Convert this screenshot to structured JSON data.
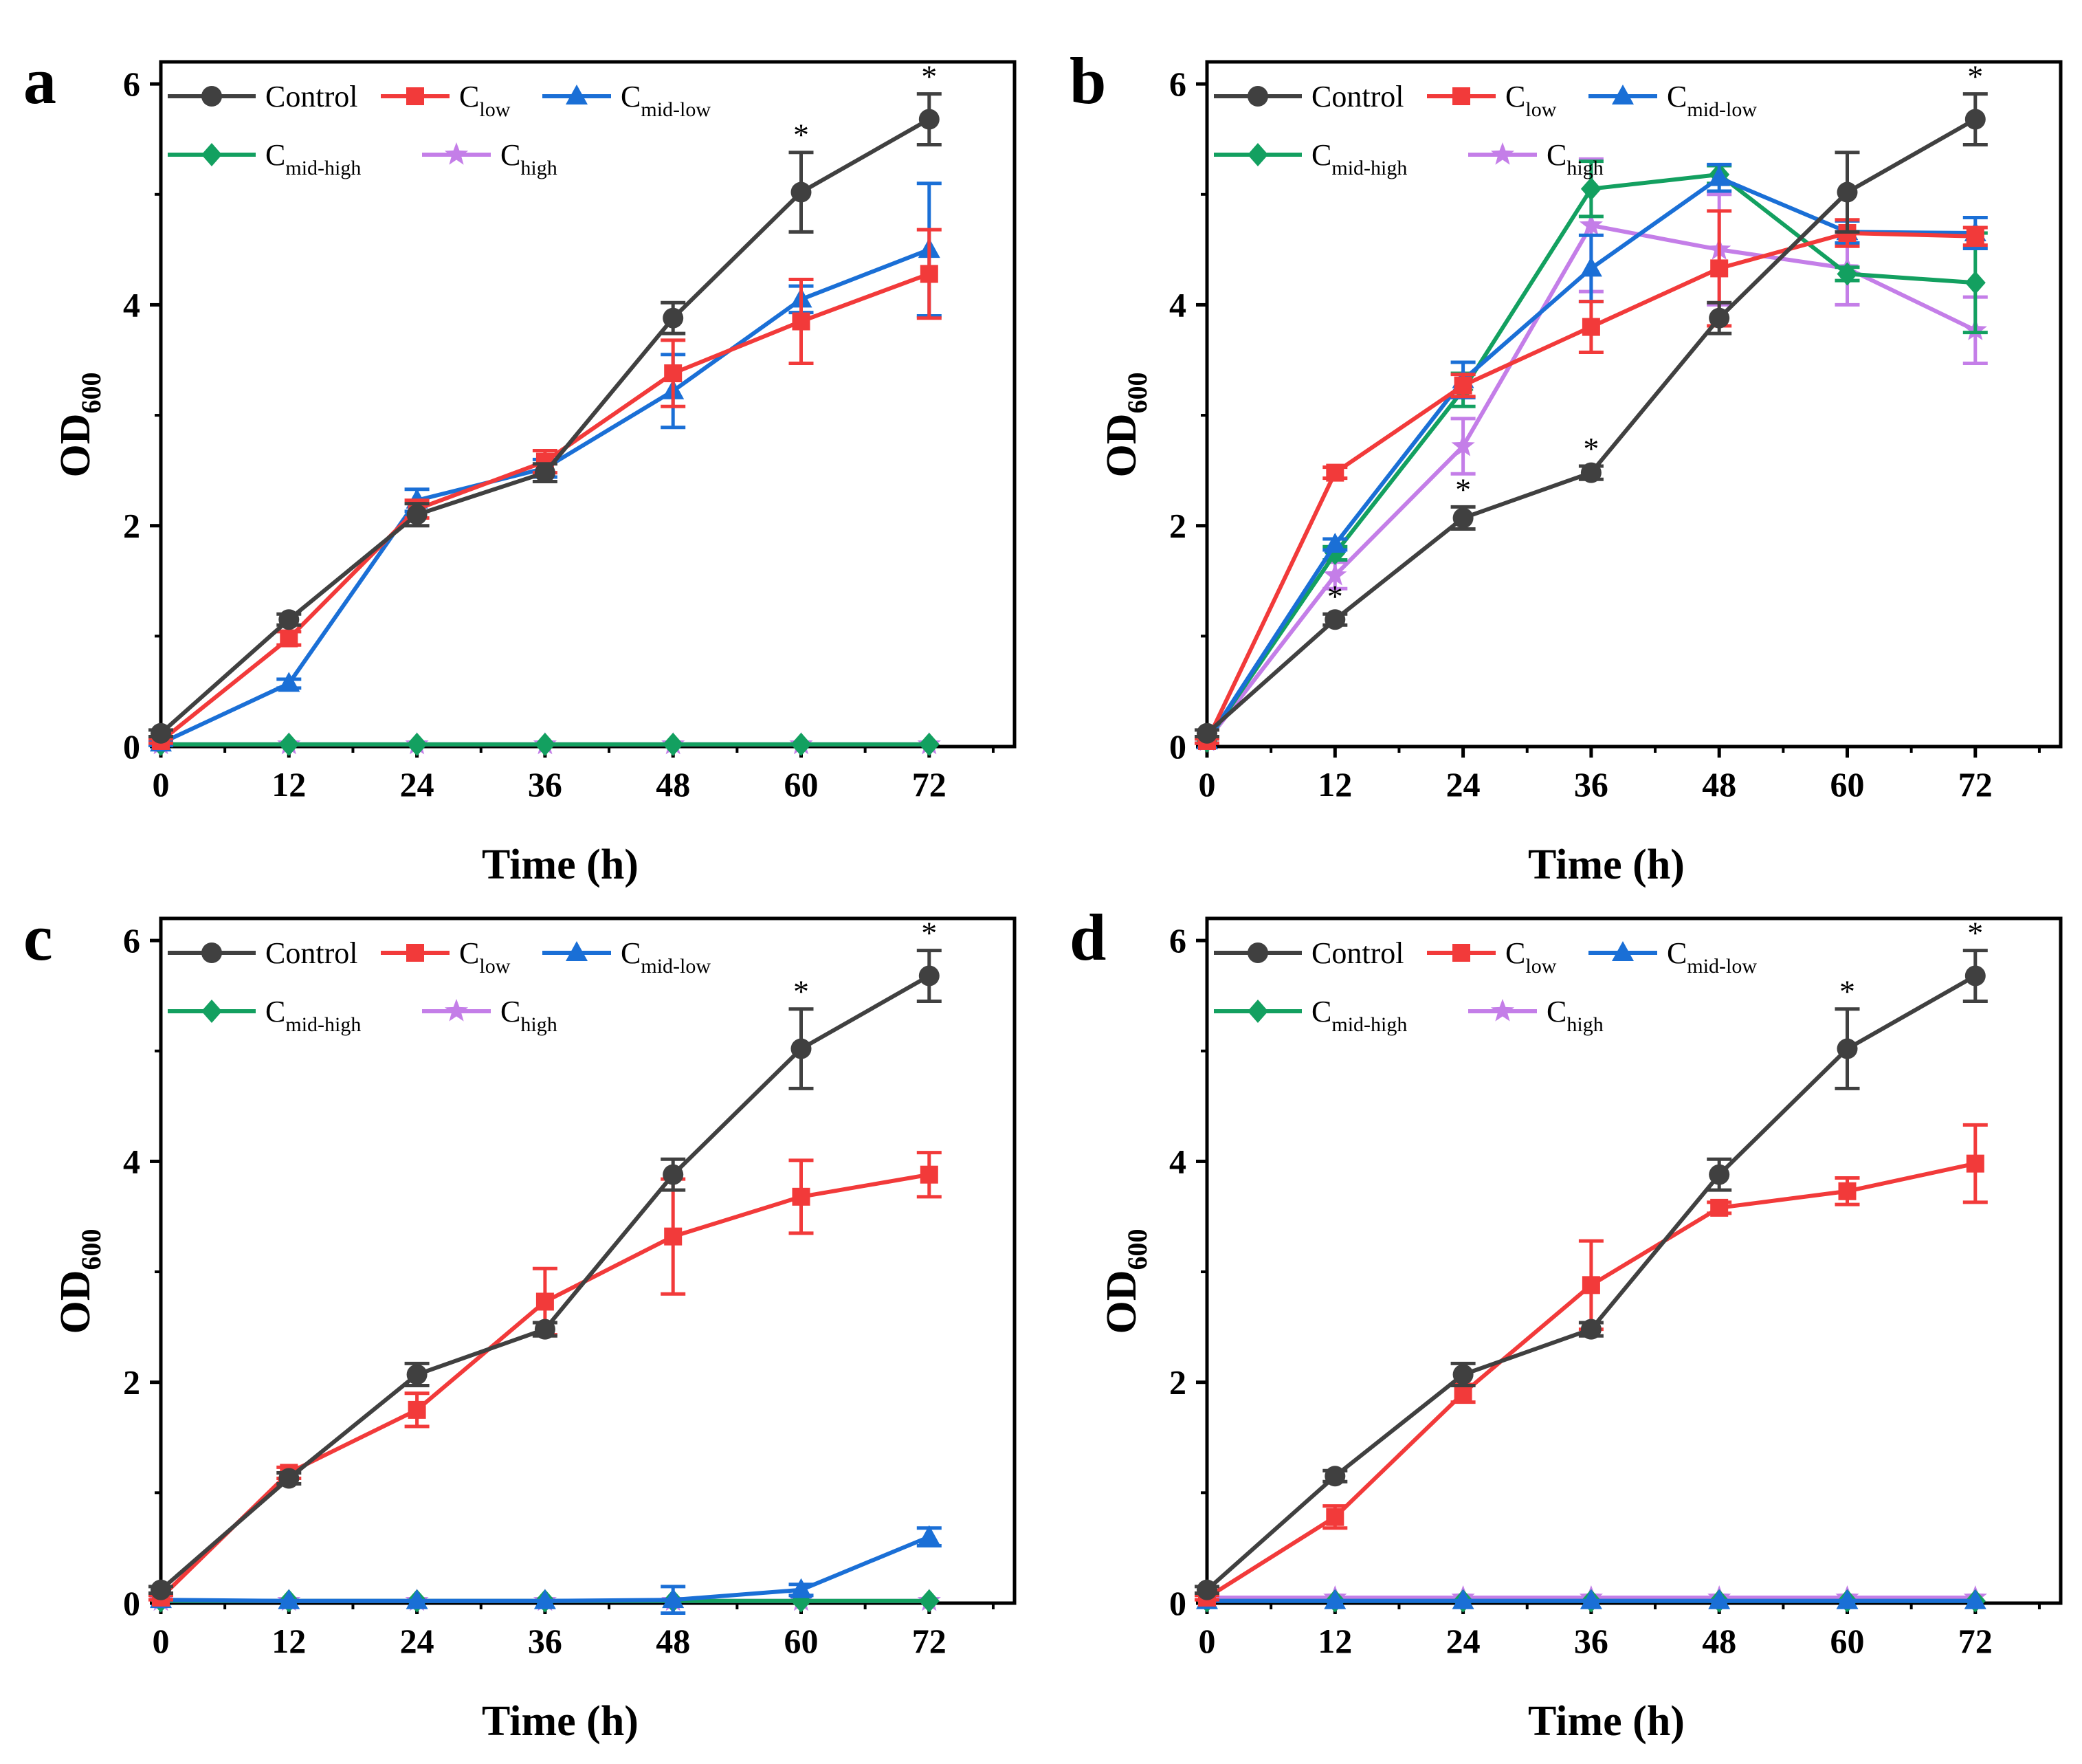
{
  "colors": {
    "control": "#404040",
    "low": "#f23a3a",
    "mid_low": "#1a6fd6",
    "mid_high": "#13a060",
    "high": "#c47ee8"
  },
  "legend": {
    "control": {
      "main": "Control",
      "sub": ""
    },
    "low": {
      "main": "C",
      "sub": "low"
    },
    "mid_low": {
      "main": "C",
      "sub": "mid-low"
    },
    "mid_high": {
      "main": "C",
      "sub": "mid-high"
    },
    "high": {
      "main": "C",
      "sub": "high"
    }
  },
  "chart_data": [
    {
      "panel": "a",
      "type": "line",
      "xlabel": "Time (h)",
      "ylabel": {
        "main": "OD",
        "sub": "600"
      },
      "x": [
        0,
        12,
        24,
        36,
        48,
        60,
        72
      ],
      "xlim": [
        0,
        80
      ],
      "ylim": [
        0,
        6.2
      ],
      "xticks": [
        "0",
        "12",
        "24",
        "36",
        "48",
        "60",
        "72"
      ],
      "yticks": [
        "0",
        "2",
        "4",
        "6"
      ],
      "asterisks": [
        {
          "x": 60,
          "text": "*"
        },
        {
          "x": 72,
          "text": "*"
        }
      ],
      "series": [
        {
          "key": "control",
          "marker": "circle",
          "values": [
            0.12,
            1.15,
            2.1,
            2.48,
            3.88,
            5.02,
            5.68
          ],
          "errors": [
            0.03,
            0.05,
            0.1,
            0.08,
            0.14,
            0.36,
            0.23
          ]
        },
        {
          "key": "low",
          "marker": "square",
          "values": [
            0.05,
            0.98,
            2.15,
            2.58,
            3.38,
            3.85,
            4.28
          ],
          "errors": [
            0.02,
            0.06,
            0.08,
            0.1,
            0.3,
            0.38,
            0.4
          ]
        },
        {
          "key": "mid_low",
          "marker": "triangle",
          "values": [
            0.03,
            0.57,
            2.23,
            2.52,
            3.22,
            4.05,
            4.5
          ],
          "errors": [
            0.02,
            0.04,
            0.1,
            0.08,
            0.33,
            0.12,
            0.6
          ]
        },
        {
          "key": "mid_high",
          "marker": "diamond",
          "values": [
            0.02,
            0.02,
            0.02,
            0.02,
            0.02,
            0.02,
            0.02
          ],
          "errors": [
            0,
            0,
            0,
            0,
            0,
            0,
            0
          ]
        },
        {
          "key": "high",
          "marker": "star",
          "values": [
            0.02,
            0.02,
            0.02,
            0.02,
            0.02,
            0.02,
            0.02
          ],
          "errors": [
            0,
            0,
            0,
            0,
            0,
            0,
            0
          ]
        }
      ]
    },
    {
      "panel": "b",
      "type": "line",
      "xlabel": "Time (h)",
      "ylabel": {
        "main": "OD",
        "sub": "600"
      },
      "x": [
        0,
        12,
        24,
        36,
        48,
        60,
        72
      ],
      "xlim": [
        0,
        80
      ],
      "ylim": [
        0,
        6.2
      ],
      "xticks": [
        "0",
        "12",
        "24",
        "36",
        "48",
        "60",
        "72"
      ],
      "yticks": [
        "0",
        "2",
        "4",
        "6"
      ],
      "asterisks": [
        {
          "x": 12,
          "text": "*"
        },
        {
          "x": 24,
          "text": "*"
        },
        {
          "x": 36,
          "text": "*"
        },
        {
          "x": 72,
          "text": "*"
        }
      ],
      "series": [
        {
          "key": "control",
          "marker": "circle",
          "values": [
            0.12,
            1.15,
            2.07,
            2.48,
            3.88,
            5.02,
            5.68
          ],
          "errors": [
            0.03,
            0.05,
            0.1,
            0.06,
            0.14,
            0.36,
            0.23
          ]
        },
        {
          "key": "low",
          "marker": "square",
          "values": [
            0.05,
            2.48,
            3.27,
            3.8,
            4.33,
            4.65,
            4.62
          ],
          "errors": [
            0.02,
            0.05,
            0.1,
            0.23,
            0.52,
            0.12,
            0.08
          ]
        },
        {
          "key": "mid_low",
          "marker": "triangle",
          "values": [
            0.05,
            1.83,
            3.32,
            4.33,
            5.15,
            4.66,
            4.65
          ],
          "errors": [
            0.02,
            0.05,
            0.16,
            0.3,
            0.12,
            0.1,
            0.14
          ]
        },
        {
          "key": "mid_high",
          "marker": "diamond",
          "values": [
            0.05,
            1.75,
            3.23,
            5.05,
            5.18,
            4.28,
            4.2
          ],
          "errors": [
            0.02,
            0.06,
            0.15,
            0.25,
            0.08,
            0.06,
            0.45
          ]
        },
        {
          "key": "high",
          "marker": "star",
          "values": [
            0.05,
            1.55,
            2.72,
            4.72,
            4.5,
            4.33,
            3.77
          ],
          "errors": [
            0.02,
            0.12,
            0.25,
            0.6,
            0.5,
            0.33,
            0.3
          ]
        }
      ]
    },
    {
      "panel": "c",
      "type": "line",
      "xlabel": "Time (h)",
      "ylabel": {
        "main": "OD",
        "sub": "600"
      },
      "x": [
        0,
        12,
        24,
        36,
        48,
        60,
        72
      ],
      "xlim": [
        0,
        80
      ],
      "ylim": [
        0,
        6.2
      ],
      "xticks": [
        "0",
        "12",
        "24",
        "36",
        "48",
        "60",
        "72"
      ],
      "yticks": [
        "0",
        "2",
        "4",
        "6"
      ],
      "asterisks": [
        {
          "x": 60,
          "text": "*"
        },
        {
          "x": 72,
          "text": "*"
        }
      ],
      "series": [
        {
          "key": "control",
          "marker": "circle",
          "values": [
            0.12,
            1.13,
            2.07,
            2.48,
            3.88,
            5.02,
            5.68
          ],
          "errors": [
            0.03,
            0.05,
            0.1,
            0.06,
            0.14,
            0.36,
            0.23
          ]
        },
        {
          "key": "low",
          "marker": "square",
          "values": [
            0.05,
            1.18,
            1.75,
            2.73,
            3.32,
            3.68,
            3.88
          ],
          "errors": [
            0.02,
            0.05,
            0.15,
            0.3,
            0.52,
            0.33,
            0.2
          ]
        },
        {
          "key": "mid_low",
          "marker": "triangle",
          "values": [
            0.03,
            0.02,
            0.02,
            0.02,
            0.03,
            0.12,
            0.6
          ],
          "errors": [
            0,
            0,
            0,
            0,
            0.12,
            0.05,
            0.08
          ]
        },
        {
          "key": "mid_high",
          "marker": "diamond",
          "values": [
            0.02,
            0.02,
            0.02,
            0.02,
            0.02,
            0.02,
            0.02
          ],
          "errors": [
            0,
            0,
            0,
            0,
            0,
            0,
            0
          ]
        },
        {
          "key": "high",
          "marker": "star",
          "values": [
            0.02,
            0.02,
            0.02,
            0.02,
            0.02,
            0.02,
            0.02
          ],
          "errors": [
            0,
            0,
            0,
            0,
            0,
            0,
            0
          ]
        }
      ]
    },
    {
      "panel": "d",
      "type": "line",
      "xlabel": "Time (h)",
      "ylabel": {
        "main": "OD",
        "sub": "600"
      },
      "x": [
        0,
        12,
        24,
        36,
        48,
        60,
        72
      ],
      "xlim": [
        0,
        80
      ],
      "ylim": [
        0,
        6.2
      ],
      "xticks": [
        "0",
        "12",
        "24",
        "36",
        "48",
        "60",
        "72"
      ],
      "yticks": [
        "0",
        "2",
        "4",
        "6"
      ],
      "asterisks": [
        {
          "x": 60,
          "text": "*"
        },
        {
          "x": 72,
          "text": "*"
        }
      ],
      "series": [
        {
          "key": "control",
          "marker": "circle",
          "values": [
            0.12,
            1.15,
            2.07,
            2.48,
            3.88,
            5.02,
            5.68
          ],
          "errors": [
            0.03,
            0.05,
            0.1,
            0.06,
            0.14,
            0.36,
            0.23
          ]
        },
        {
          "key": "low",
          "marker": "square",
          "values": [
            0.05,
            0.78,
            1.9,
            2.88,
            3.58,
            3.73,
            3.98
          ],
          "errors": [
            0.02,
            0.1,
            0.08,
            0.4,
            0.05,
            0.12,
            0.35
          ]
        },
        {
          "key": "mid_low",
          "marker": "triangle",
          "values": [
            0.02,
            0.02,
            0.02,
            0.02,
            0.02,
            0.02,
            0.02
          ],
          "errors": [
            0,
            0,
            0,
            0,
            0,
            0,
            0
          ]
        },
        {
          "key": "mid_high",
          "marker": "diamond",
          "values": [
            0.02,
            0.02,
            0.02,
            0.02,
            0.02,
            0.02,
            0.02
          ],
          "errors": [
            0,
            0,
            0,
            0,
            0,
            0,
            0
          ]
        },
        {
          "key": "high",
          "marker": "star",
          "values": [
            0.05,
            0.05,
            0.05,
            0.05,
            0.05,
            0.05,
            0.05
          ],
          "errors": [
            0,
            0,
            0,
            0,
            0,
            0,
            0
          ]
        }
      ]
    }
  ]
}
